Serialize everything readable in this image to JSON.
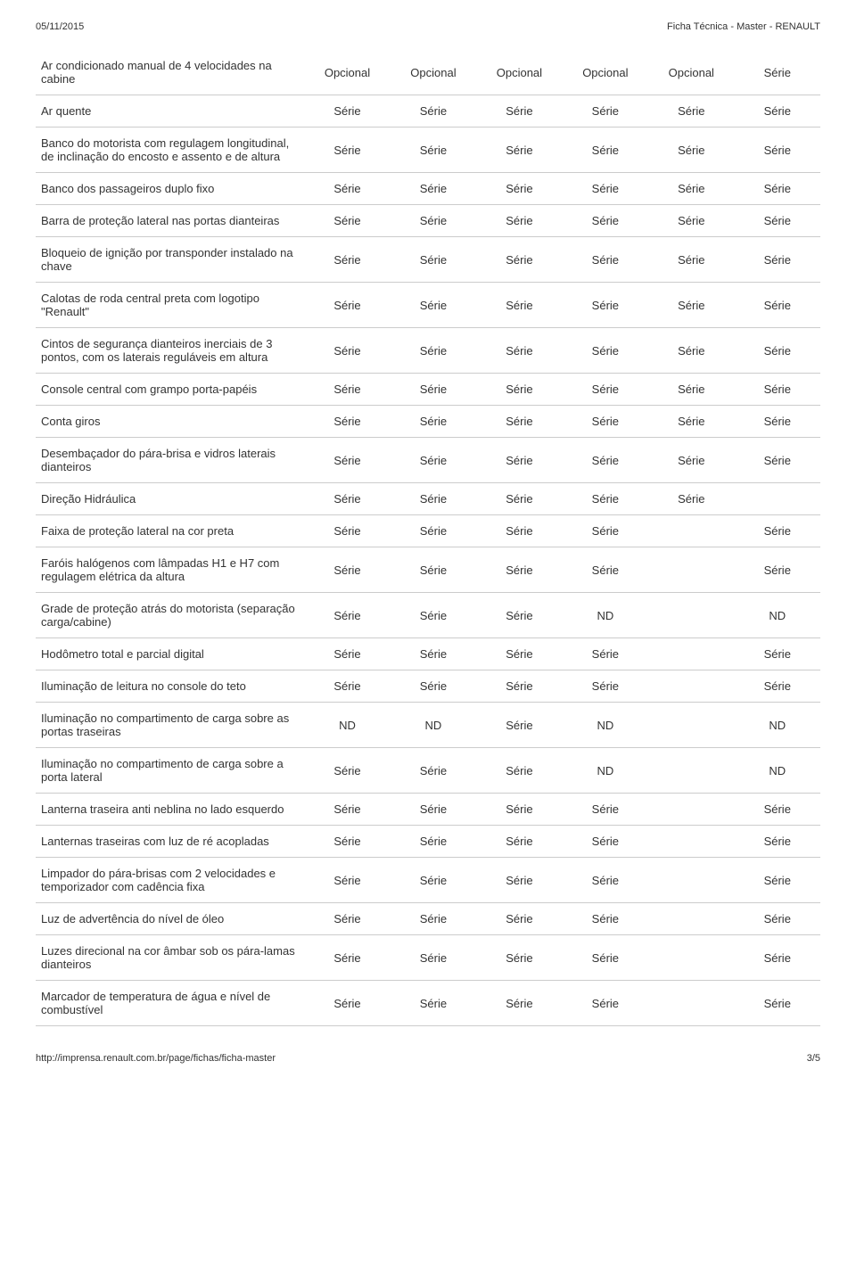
{
  "header": {
    "date": "05/11/2015",
    "title": "Ficha Técnica - Master - RENAULT"
  },
  "footer": {
    "url": "http://imprensa.renault.com.br/page/fichas/ficha-master",
    "page": "3/5"
  },
  "rows": [
    {
      "label": "Ar condicionado manual de 4 velocidades na cabine",
      "cells": [
        "Opcional",
        "Opcional",
        "Opcional",
        "Opcional",
        "Opcional",
        "Série"
      ]
    },
    {
      "label": "Ar quente",
      "cells": [
        "Série",
        "Série",
        "Série",
        "Série",
        "Série",
        "Série"
      ]
    },
    {
      "label": "Banco do motorista com regulagem longitudinal, de inclinação do encosto e assento e de altura",
      "cells": [
        "Série",
        "Série",
        "Série",
        "Série",
        "Série",
        "Série"
      ]
    },
    {
      "label": "Banco dos passageiros duplo fixo",
      "cells": [
        "Série",
        "Série",
        "Série",
        "Série",
        "Série",
        "Série"
      ]
    },
    {
      "label": "Barra de proteção lateral nas portas dianteiras",
      "cells": [
        "Série",
        "Série",
        "Série",
        "Série",
        "Série",
        "Série"
      ]
    },
    {
      "label": "Bloqueio de ignição por transponder instalado na chave",
      "cells": [
        "Série",
        "Série",
        "Série",
        "Série",
        "Série",
        "Série"
      ]
    },
    {
      "label": "Calotas de roda central preta com logotipo \"Renault\"",
      "cells": [
        "Série",
        "Série",
        "Série",
        "Série",
        "Série",
        "Série"
      ]
    },
    {
      "label": "Cintos de segurança dianteiros inerciais de 3 pontos, com os laterais reguláveis em altura",
      "cells": [
        "Série",
        "Série",
        "Série",
        "Série",
        "Série",
        "Série"
      ]
    },
    {
      "label": "Console central com grampo porta-papéis",
      "cells": [
        "Série",
        "Série",
        "Série",
        "Série",
        "Série",
        "Série"
      ]
    },
    {
      "label": "Conta giros",
      "cells": [
        "Série",
        "Série",
        "Série",
        "Série",
        "Série",
        "Série"
      ]
    },
    {
      "label": "Desembaçador do pára-brisa e vidros laterais dianteiros",
      "cells": [
        "Série",
        "Série",
        "Série",
        "Série",
        "Série",
        "Série"
      ]
    },
    {
      "label": "Direção Hidráulica",
      "cells": [
        "Série",
        "Série",
        "Série",
        "Série",
        "Série",
        ""
      ]
    },
    {
      "label": "Faixa de proteção lateral na cor preta",
      "cells": [
        "Série",
        "Série",
        "Série",
        "Série",
        "",
        "Série"
      ]
    },
    {
      "label": "Faróis halógenos com lâmpadas H1 e H7 com regulagem elétrica da altura",
      "cells": [
        "Série",
        "Série",
        "Série",
        "Série",
        "",
        "Série"
      ]
    },
    {
      "label": "Grade de proteção atrás do motorista (separação carga/cabine)",
      "cells": [
        "Série",
        "Série",
        "Série",
        "ND",
        "",
        "ND"
      ]
    },
    {
      "label": "Hodômetro total e parcial digital",
      "cells": [
        "Série",
        "Série",
        "Série",
        "Série",
        "",
        "Série"
      ]
    },
    {
      "label": "Iluminação de leitura no console do teto",
      "cells": [
        "Série",
        "Série",
        "Série",
        "Série",
        "",
        "Série"
      ]
    },
    {
      "label": "Iluminação no compartimento de carga sobre as portas traseiras",
      "cells": [
        "ND",
        "ND",
        "Série",
        "ND",
        "",
        "ND"
      ]
    },
    {
      "label": "Iluminação no compartimento de carga sobre a porta lateral",
      "cells": [
        "Série",
        "Série",
        "Série",
        "ND",
        "",
        "ND"
      ]
    },
    {
      "label": "Lanterna traseira anti neblina no lado esquerdo",
      "cells": [
        "Série",
        "Série",
        "Série",
        "Série",
        "",
        "Série"
      ]
    },
    {
      "label": "Lanternas traseiras com luz de ré acopladas",
      "cells": [
        "Série",
        "Série",
        "Série",
        "Série",
        "",
        "Série"
      ]
    },
    {
      "label": "Limpador do pára-brisas com 2 velocidades e temporizador com cadência fixa",
      "cells": [
        "Série",
        "Série",
        "Série",
        "Série",
        "",
        "Série"
      ]
    },
    {
      "label": "Luz de advertência do nível de óleo",
      "cells": [
        "Série",
        "Série",
        "Série",
        "Série",
        "",
        "Série"
      ]
    },
    {
      "label": "Luzes direcional na cor âmbar sob os pára-lamas dianteiros",
      "cells": [
        "Série",
        "Série",
        "Série",
        "Série",
        "",
        "Série"
      ]
    },
    {
      "label": "Marcador de temperatura de água e nível de combustível",
      "cells": [
        "Série",
        "Série",
        "Série",
        "Série",
        "",
        "Série"
      ]
    }
  ]
}
